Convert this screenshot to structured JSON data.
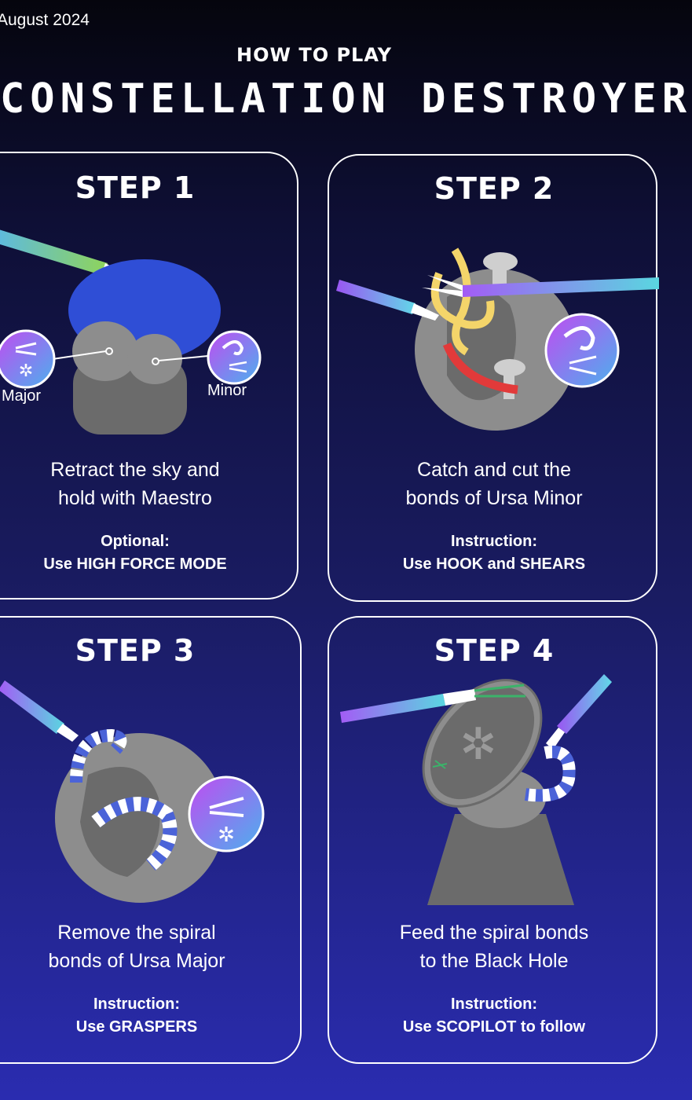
{
  "header": {
    "date": "August 2024",
    "subtitle": "HOW TO PLAY",
    "title": "CONSTELLATION DESTROYER"
  },
  "steps": [
    {
      "label": "STEP 1",
      "desc_line1": "Retract the sky and",
      "desc_line2": "hold with Maestro",
      "inst_line1": "Optional:",
      "inst_line2": "Use HIGH FORCE MODE",
      "callouts": {
        "left": "Major",
        "right": "Minor"
      }
    },
    {
      "label": "STEP 2",
      "desc_line1": "Catch and cut the",
      "desc_line2": "bonds of Ursa Minor",
      "inst_line1": "Instruction:",
      "inst_line2": "Use HOOK and SHEARS"
    },
    {
      "label": "STEP 3",
      "desc_line1": "Remove the spiral",
      "desc_line2": "bonds of Ursa Major",
      "inst_line1": "Instruction:",
      "inst_line2": "Use GRASPERS"
    },
    {
      "label": "STEP 4",
      "desc_line1": "Feed the spiral bonds",
      "desc_line2": "to the Black Hole",
      "inst_line1": "Instruction:",
      "inst_line2": "Use SCOPILOT to follow"
    }
  ],
  "colors": {
    "card_border": "#ffffff",
    "planet_gray": "#8d8d8d",
    "shadow_gray": "#6b6b6b",
    "sky_blue": "#2f4ed6",
    "bond_yellow": "#f4d56a",
    "bond_red": "#e23a3a",
    "stripe_blue": "#4b63d8",
    "tool_purple": "#9b5cf5",
    "tool_teal": "#5ad6e0"
  },
  "icons": [
    "hook-icon",
    "shears-icon",
    "spiral-icon",
    "black-hole-icon",
    "grasper-icon"
  ]
}
